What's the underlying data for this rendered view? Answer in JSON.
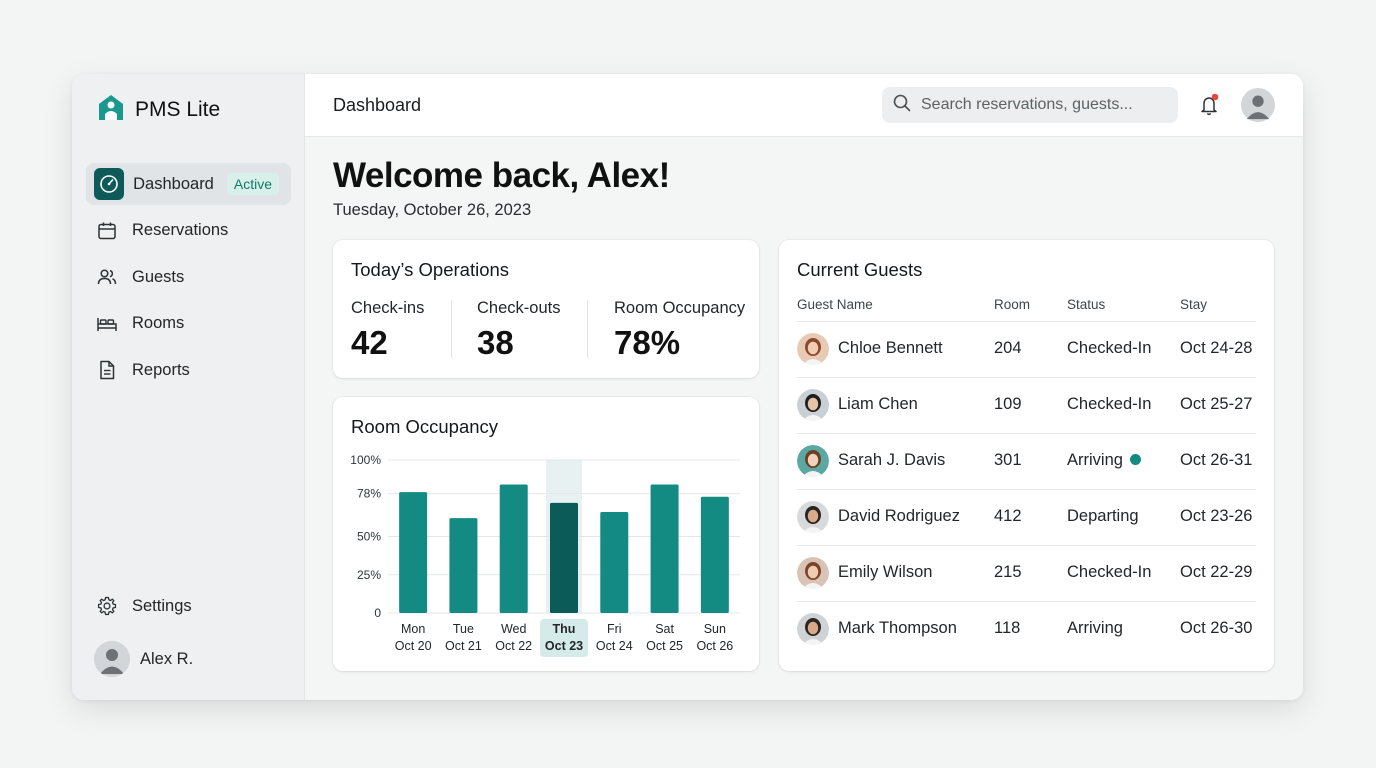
{
  "app": {
    "name": "PMS Lite"
  },
  "sidebar": {
    "items": [
      {
        "label": "Dashboard",
        "icon": "gauge-icon",
        "active": true,
        "badge": "Active"
      },
      {
        "label": "Reservations",
        "icon": "calendar-icon"
      },
      {
        "label": "Guests",
        "icon": "users-icon"
      },
      {
        "label": "Rooms",
        "icon": "bed-icon"
      },
      {
        "label": "Reports",
        "icon": "document-icon"
      }
    ],
    "settings_label": "Settings",
    "user_name": "Alex R."
  },
  "header": {
    "title": "Dashboard",
    "search_placeholder": "Search reservations, guests...",
    "has_notification": true
  },
  "welcome": {
    "heading": "Welcome back, Alex!",
    "date": "Tuesday, October 26, 2023"
  },
  "operations": {
    "title": "Today’s Operations",
    "stats": [
      {
        "label": "Check-ins",
        "value": "42"
      },
      {
        "label": "Check-outs",
        "value": "38"
      },
      {
        "label": "Room Occupancy",
        "value": "78%"
      }
    ]
  },
  "occupancy": {
    "title": "Room Occupancy"
  },
  "chart_data": {
    "type": "bar",
    "title": "Room Occupancy",
    "categories": [
      "Mon Oct 20",
      "Tue Oct 21",
      "Wed Oct 22",
      "Thu Oct 23",
      "Fri Oct 24",
      "Sat Oct 25",
      "Sun Oct 26"
    ],
    "day_labels": [
      "Mon",
      "Tue",
      "Wed",
      "Thu",
      "Fri",
      "Sat",
      "Sun"
    ],
    "date_labels": [
      "Oct 20",
      "Oct 21",
      "Oct 22",
      "Oct 23",
      "Oct 24",
      "Oct 25",
      "Oct 26"
    ],
    "values": [
      79,
      62,
      84,
      72,
      66,
      84,
      76
    ],
    "highlight_index": 3,
    "yticks": [
      0,
      25,
      50,
      78,
      100
    ],
    "ytick_labels": [
      "0",
      "25%",
      "50%",
      "78%",
      "100%"
    ],
    "ylim": [
      0,
      100
    ],
    "grid": true,
    "bar_color": "#138a82",
    "highlight_color": "#0b5b58"
  },
  "current_guests": {
    "title": "Current Guests",
    "columns": [
      "Guest Name",
      "Room",
      "Status",
      "Stay"
    ],
    "rows": [
      {
        "name": "Chloe Bennett",
        "room": "204",
        "status": "Checked-In",
        "stay": "Oct 24-28",
        "dot": false
      },
      {
        "name": "Liam Chen",
        "room": "109",
        "status": "Checked-In",
        "stay": "Oct 25-27",
        "dot": false
      },
      {
        "name": "Sarah J. Davis",
        "room": "301",
        "status": "Arriving",
        "stay": "Oct 26-31",
        "dot": true
      },
      {
        "name": "David Rodriguez",
        "room": "412",
        "status": "Departing",
        "stay": "Oct 23-26",
        "dot": false
      },
      {
        "name": "Emily Wilson",
        "room": "215",
        "status": "Checked-In",
        "stay": "Oct 22-29",
        "dot": false
      },
      {
        "name": "Mark Thompson",
        "room": "118",
        "status": "Arriving",
        "stay": "Oct 26-30",
        "dot": false
      }
    ]
  },
  "colors": {
    "accent": "#138a82",
    "accent_dark": "#0e5a5a",
    "active_badge_bg": "#d9f0ea",
    "notification": "#e5483d"
  }
}
